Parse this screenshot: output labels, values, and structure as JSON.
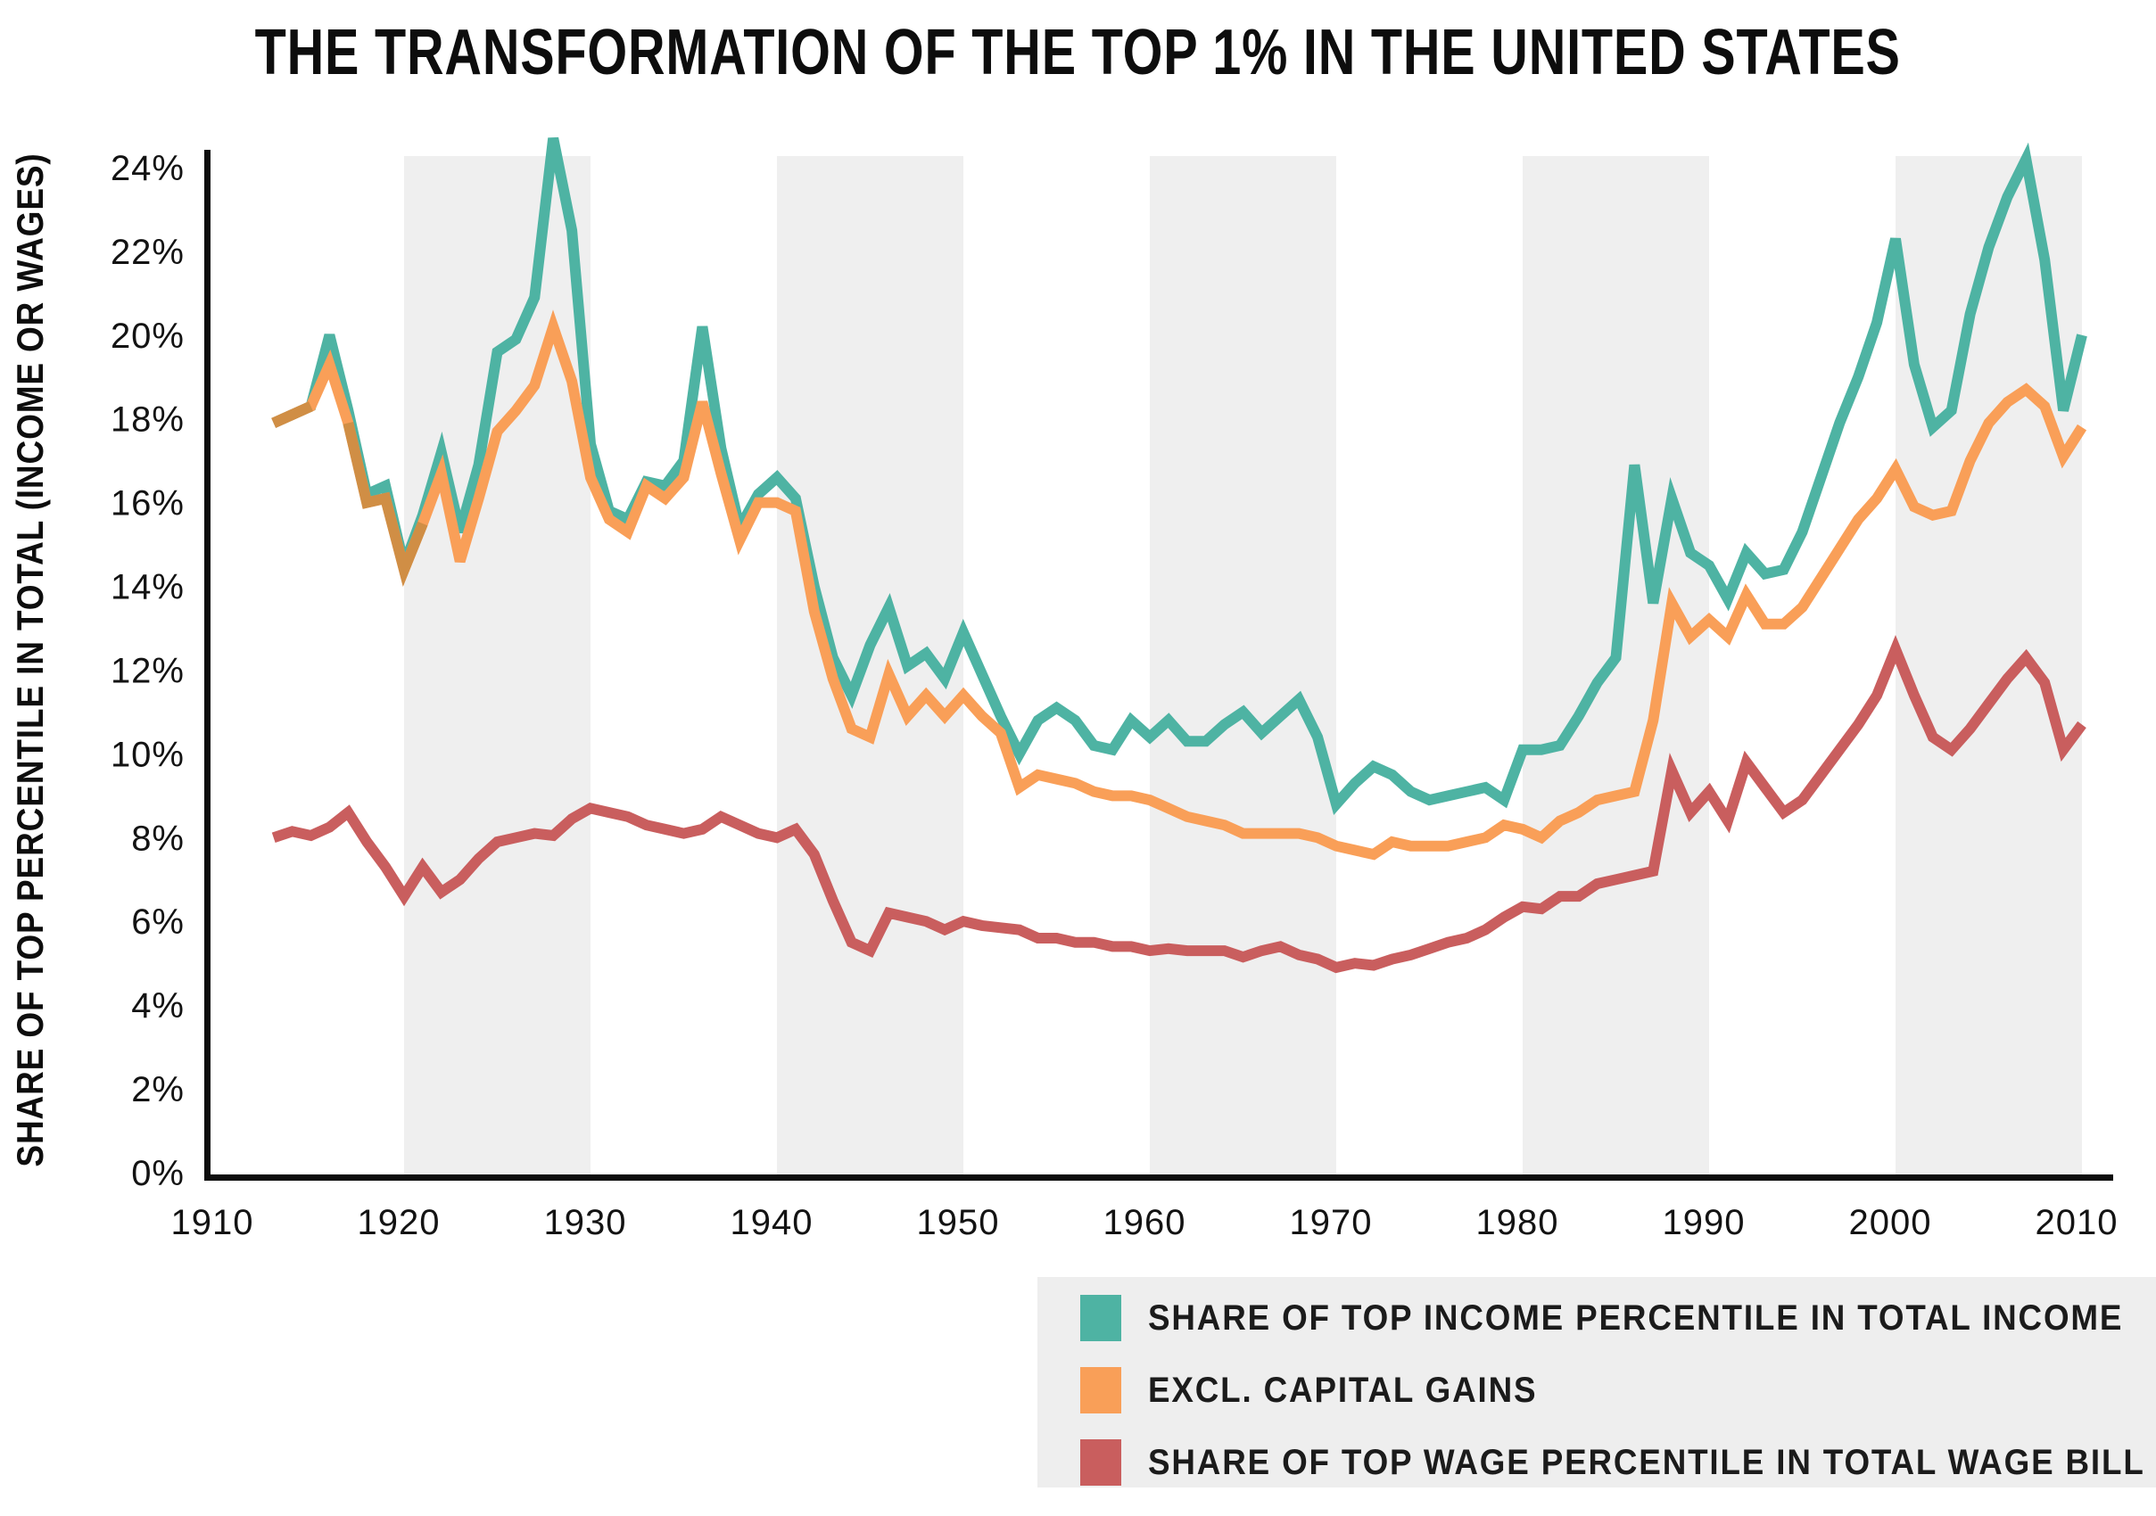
{
  "title": "THE TRANSFORMATION OF THE TOP 1% IN THE UNITED STATES",
  "y_axis_title": "SHARE OF TOP PERCENTILE IN TOTAL (INCOME OR WAGES)",
  "colors": {
    "income_series": "#4eb3a3",
    "excl_gains_series": "#f99f58",
    "wage_series": "#c95e5e",
    "merged_overlap": "#d08e45",
    "decade_band": "#efefef",
    "legend_background": "#eeeeee",
    "axis": "#0d0d0d",
    "text": "#131313"
  },
  "legend": {
    "items": [
      {
        "label": "SHARE OF TOP INCOME PERCENTILE IN TOTAL INCOME",
        "color": "#4eb3a3"
      },
      {
        "label": "EXCL. CAPITAL GAINS",
        "color": "#f99f58"
      },
      {
        "label": "SHARE OF TOP WAGE PERCENTILE IN TOTAL WAGE BILL",
        "color": "#c95e5e"
      }
    ]
  },
  "chart_data": {
    "type": "line",
    "title": "THE TRANSFORMATION OF THE TOP 1% IN THE UNITED STATES",
    "xlabel": "",
    "ylabel": "SHARE OF TOP PERCENTILE IN TOTAL (INCOME OR WAGES)",
    "xlim": [
      1909.4,
      2011.6
    ],
    "ylim": [
      0,
      24.7
    ],
    "grid": false,
    "legend_position": "bottom-right",
    "x_ticks": [
      1910,
      1920,
      1930,
      1940,
      1950,
      1960,
      1970,
      1980,
      1990,
      2000,
      2010
    ],
    "y_ticks": [
      24,
      22,
      20,
      18,
      16,
      14,
      12,
      10,
      8,
      6,
      4,
      2,
      0
    ],
    "y_tick_suffix": "%",
    "shaded_decades": [
      [
        1920,
        1930
      ],
      [
        1940,
        1950
      ],
      [
        1960,
        1970
      ],
      [
        1980,
        1990
      ],
      [
        2000,
        2010
      ]
    ],
    "x": [
      1913,
      1914,
      1915,
      1916,
      1917,
      1918,
      1919,
      1920,
      1921,
      1922,
      1923,
      1924,
      1925,
      1926,
      1927,
      1928,
      1929,
      1930,
      1931,
      1932,
      1933,
      1934,
      1935,
      1936,
      1937,
      1938,
      1939,
      1940,
      1941,
      1942,
      1943,
      1944,
      1945,
      1946,
      1947,
      1948,
      1949,
      1950,
      1951,
      1952,
      1953,
      1954,
      1955,
      1956,
      1957,
      1958,
      1959,
      1960,
      1961,
      1962,
      1963,
      1964,
      1965,
      1966,
      1967,
      1968,
      1969,
      1970,
      1971,
      1972,
      1973,
      1974,
      1975,
      1976,
      1977,
      1978,
      1979,
      1980,
      1981,
      1982,
      1983,
      1984,
      1985,
      1986,
      1987,
      1988,
      1989,
      1990,
      1991,
      1992,
      1993,
      1994,
      1995,
      1996,
      1997,
      1998,
      1999,
      2000,
      2001,
      2002,
      2003,
      2004,
      2005,
      2006,
      2007,
      2008,
      2009,
      2010
    ],
    "series": [
      {
        "name": "SHARE OF TOP INCOME PERCENTILE IN TOTAL INCOME",
        "color": "#4eb3a3",
        "values": [
          17.9,
          18.1,
          18.3,
          20.0,
          18.2,
          16.2,
          16.4,
          14.5,
          15.7,
          17.2,
          15.3,
          16.9,
          19.6,
          19.9,
          20.9,
          24.7,
          22.5,
          17.4,
          15.8,
          15.6,
          16.5,
          16.4,
          17.0,
          20.2,
          17.3,
          15.4,
          16.2,
          16.6,
          16.1,
          14.0,
          12.3,
          11.4,
          12.6,
          13.5,
          12.1,
          12.4,
          11.8,
          12.9,
          11.9,
          10.9,
          10.0,
          10.8,
          11.1,
          10.8,
          10.2,
          10.1,
          10.8,
          10.4,
          10.8,
          10.3,
          10.3,
          10.7,
          11.0,
          10.5,
          10.9,
          11.3,
          10.4,
          8.8,
          9.3,
          9.7,
          9.5,
          9.1,
          8.9,
          9.0,
          9.1,
          9.2,
          8.9,
          10.1,
          10.1,
          10.2,
          10.9,
          11.7,
          12.3,
          16.9,
          13.6,
          16.1,
          14.8,
          14.5,
          13.7,
          14.8,
          14.3,
          14.4,
          15.3,
          16.6,
          17.9,
          19.0,
          20.3,
          22.3,
          19.3,
          17.8,
          18.2,
          20.5,
          22.1,
          23.3,
          24.2,
          21.8,
          18.2,
          20.0
        ]
      },
      {
        "name": "EXCL. CAPITAL GAINS",
        "color": "#f99f58",
        "values": [
          17.9,
          18.1,
          18.3,
          19.3,
          17.9,
          16.0,
          16.1,
          14.4,
          15.5,
          16.7,
          14.6,
          16.1,
          17.7,
          18.2,
          18.8,
          20.2,
          18.9,
          16.6,
          15.6,
          15.3,
          16.4,
          16.1,
          16.6,
          18.4,
          16.7,
          15.1,
          16.0,
          16.0,
          15.8,
          13.4,
          11.8,
          10.6,
          10.4,
          11.9,
          10.9,
          11.4,
          10.9,
          11.4,
          10.9,
          10.5,
          9.2,
          9.5,
          9.4,
          9.3,
          9.1,
          9.0,
          9.0,
          8.9,
          8.7,
          8.5,
          8.4,
          8.3,
          8.1,
          8.1,
          8.1,
          8.1,
          8.0,
          7.8,
          7.7,
          7.6,
          7.9,
          7.8,
          7.8,
          7.8,
          7.9,
          8.0,
          8.3,
          8.2,
          8.0,
          8.4,
          8.6,
          8.9,
          9.0,
          9.1,
          10.8,
          13.6,
          12.8,
          13.2,
          12.8,
          13.8,
          13.1,
          13.1,
          13.5,
          14.2,
          14.9,
          15.6,
          16.1,
          16.8,
          15.9,
          15.7,
          15.8,
          17.0,
          17.9,
          18.4,
          18.7,
          18.3,
          17.1,
          17.8
        ]
      },
      {
        "name": "SHARE OF TOP WAGE PERCENTILE IN TOTAL WAGE BILL",
        "color": "#c95e5e",
        "values": [
          8.0,
          8.15,
          8.05,
          8.25,
          8.6,
          7.9,
          7.3,
          6.6,
          7.3,
          6.7,
          7.0,
          7.5,
          7.9,
          8.0,
          8.1,
          8.05,
          8.45,
          8.7,
          8.6,
          8.5,
          8.3,
          8.2,
          8.1,
          8.2,
          8.5,
          8.3,
          8.1,
          8.0,
          8.2,
          7.6,
          6.5,
          5.5,
          5.3,
          6.2,
          6.1,
          6.0,
          5.8,
          6.0,
          5.9,
          5.85,
          5.8,
          5.6,
          5.6,
          5.5,
          5.5,
          5.4,
          5.4,
          5.3,
          5.35,
          5.3,
          5.3,
          5.3,
          5.15,
          5.3,
          5.4,
          5.2,
          5.1,
          4.9,
          5.0,
          4.95,
          5.1,
          5.2,
          5.35,
          5.5,
          5.6,
          5.8,
          6.1,
          6.35,
          6.3,
          6.6,
          6.6,
          6.9,
          7.0,
          7.1,
          7.2,
          9.6,
          8.6,
          9.1,
          8.4,
          9.8,
          9.2,
          8.6,
          8.9,
          9.5,
          10.1,
          10.7,
          11.4,
          12.5,
          11.4,
          10.4,
          10.1,
          10.6,
          11.2,
          11.8,
          12.3,
          11.7,
          10.1,
          10.7
        ]
      }
    ]
  }
}
